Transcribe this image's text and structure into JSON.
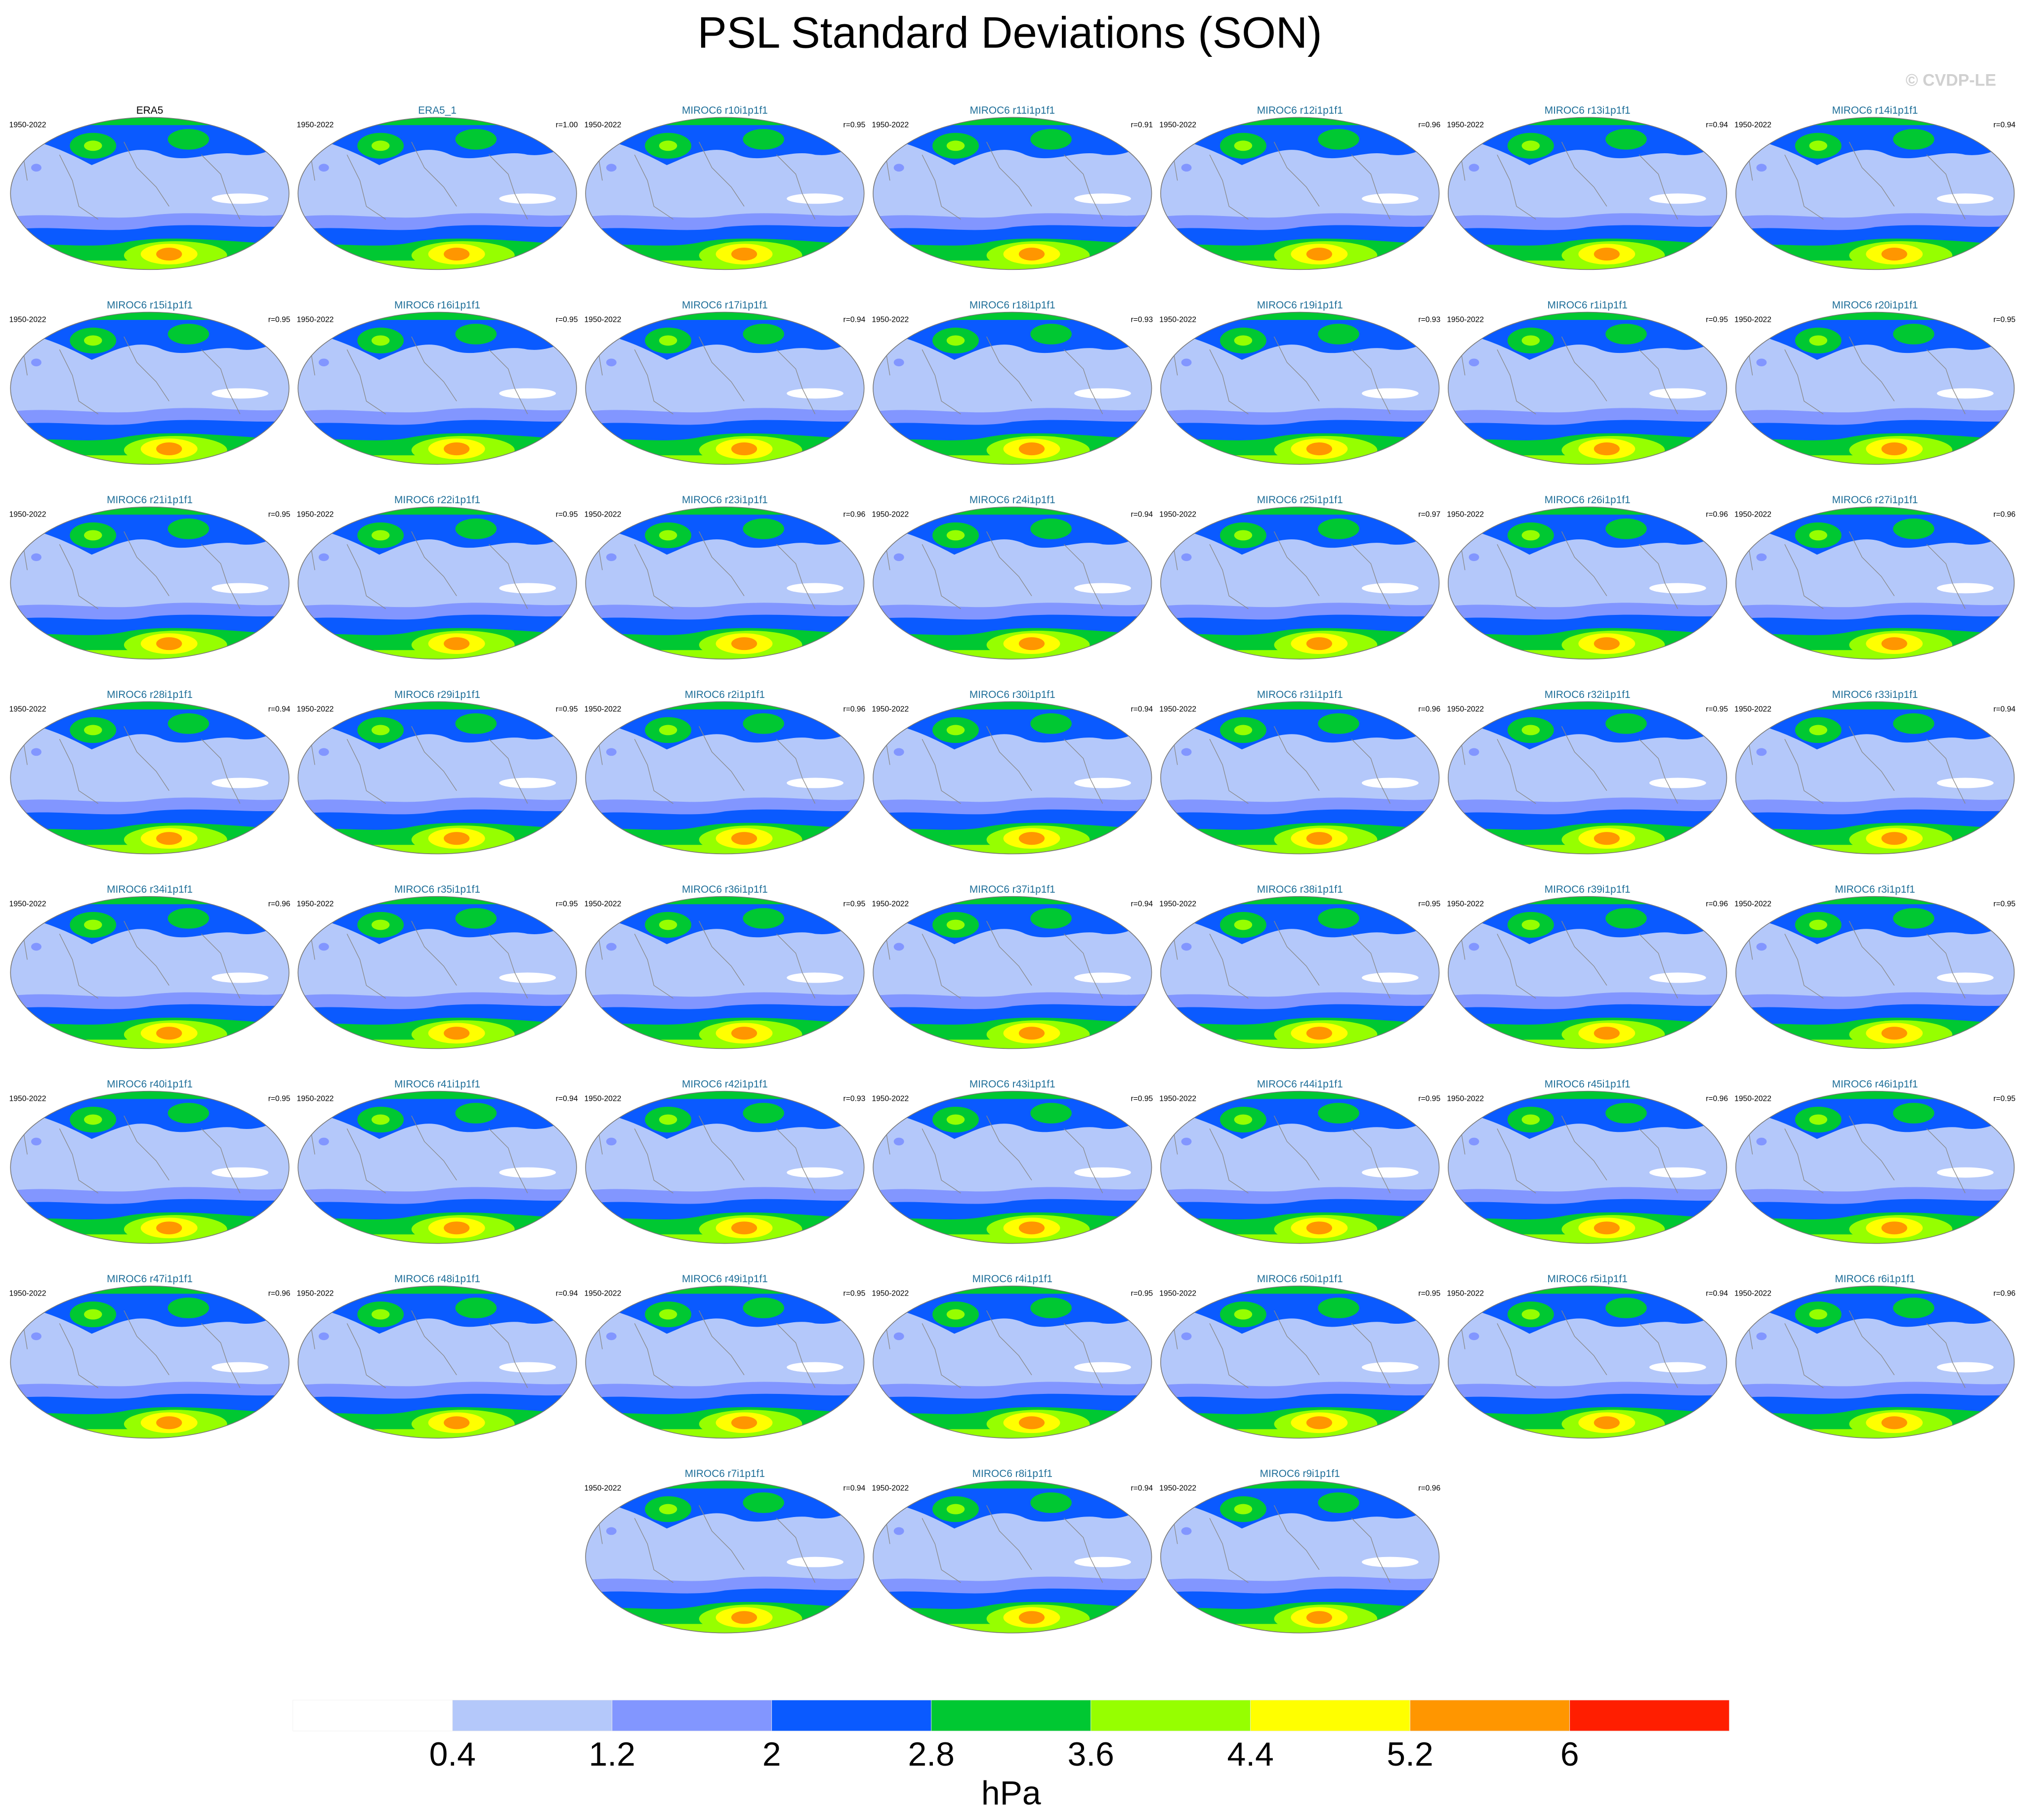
{
  "title": "PSL Standard Deviations (SON)",
  "watermark": "© CVDP-LE",
  "panels": [
    {
      "title": "ERA5",
      "period": "1950-2022"
    },
    {
      "title": "ERA5_1",
      "period": "1950-2022",
      "r": "r=1.00"
    },
    {
      "title": "MIROC6 r10i1p1f1",
      "period": "1950-2022",
      "r": "r=0.95"
    },
    {
      "title": "MIROC6 r11i1p1f1",
      "period": "1950-2022",
      "r": "r=0.91"
    },
    {
      "title": "MIROC6 r12i1p1f1",
      "period": "1950-2022",
      "r": "r=0.96"
    },
    {
      "title": "MIROC6 r13i1p1f1",
      "period": "1950-2022",
      "r": "r=0.94"
    },
    {
      "title": "MIROC6 r14i1p1f1",
      "period": "1950-2022",
      "r": "r=0.94"
    },
    {
      "title": "MIROC6 r15i1p1f1",
      "period": "1950-2022",
      "r": "r=0.95"
    },
    {
      "title": "MIROC6 r16i1p1f1",
      "period": "1950-2022",
      "r": "r=0.95"
    },
    {
      "title": "MIROC6 r17i1p1f1",
      "period": "1950-2022",
      "r": "r=0.94"
    },
    {
      "title": "MIROC6 r18i1p1f1",
      "period": "1950-2022",
      "r": "r=0.93"
    },
    {
      "title": "MIROC6 r19i1p1f1",
      "period": "1950-2022",
      "r": "r=0.93"
    },
    {
      "title": "MIROC6 r1i1p1f1",
      "period": "1950-2022",
      "r": "r=0.95"
    },
    {
      "title": "MIROC6 r20i1p1f1",
      "period": "1950-2022",
      "r": "r=0.95"
    },
    {
      "title": "MIROC6 r21i1p1f1",
      "period": "1950-2022",
      "r": "r=0.95"
    },
    {
      "title": "MIROC6 r22i1p1f1",
      "period": "1950-2022",
      "r": "r=0.95"
    },
    {
      "title": "MIROC6 r23i1p1f1",
      "period": "1950-2022",
      "r": "r=0.96"
    },
    {
      "title": "MIROC6 r24i1p1f1",
      "period": "1950-2022",
      "r": "r=0.94"
    },
    {
      "title": "MIROC6 r25i1p1f1",
      "period": "1950-2022",
      "r": "r=0.97"
    },
    {
      "title": "MIROC6 r26i1p1f1",
      "period": "1950-2022",
      "r": "r=0.96"
    },
    {
      "title": "MIROC6 r27i1p1f1",
      "period": "1950-2022",
      "r": "r=0.96"
    },
    {
      "title": "MIROC6 r28i1p1f1",
      "period": "1950-2022",
      "r": "r=0.94"
    },
    {
      "title": "MIROC6 r29i1p1f1",
      "period": "1950-2022",
      "r": "r=0.95"
    },
    {
      "title": "MIROC6 r2i1p1f1",
      "period": "1950-2022",
      "r": "r=0.96"
    },
    {
      "title": "MIROC6 r30i1p1f1",
      "period": "1950-2022",
      "r": "r=0.94"
    },
    {
      "title": "MIROC6 r31i1p1f1",
      "period": "1950-2022",
      "r": "r=0.96"
    },
    {
      "title": "MIROC6 r32i1p1f1",
      "period": "1950-2022",
      "r": "r=0.95"
    },
    {
      "title": "MIROC6 r33i1p1f1",
      "period": "1950-2022",
      "r": "r=0.94"
    },
    {
      "title": "MIROC6 r34i1p1f1",
      "period": "1950-2022",
      "r": "r=0.96"
    },
    {
      "title": "MIROC6 r35i1p1f1",
      "period": "1950-2022",
      "r": "r=0.95"
    },
    {
      "title": "MIROC6 r36i1p1f1",
      "period": "1950-2022",
      "r": "r=0.95"
    },
    {
      "title": "MIROC6 r37i1p1f1",
      "period": "1950-2022",
      "r": "r=0.94"
    },
    {
      "title": "MIROC6 r38i1p1f1",
      "period": "1950-2022",
      "r": "r=0.95"
    },
    {
      "title": "MIROC6 r39i1p1f1",
      "period": "1950-2022",
      "r": "r=0.96"
    },
    {
      "title": "MIROC6 r3i1p1f1",
      "period": "1950-2022",
      "r": "r=0.95"
    },
    {
      "title": "MIROC6 r40i1p1f1",
      "period": "1950-2022",
      "r": "r=0.95"
    },
    {
      "title": "MIROC6 r41i1p1f1",
      "period": "1950-2022",
      "r": "r=0.94"
    },
    {
      "title": "MIROC6 r42i1p1f1",
      "period": "1950-2022",
      "r": "r=0.93"
    },
    {
      "title": "MIROC6 r43i1p1f1",
      "period": "1950-2022",
      "r": "r=0.95"
    },
    {
      "title": "MIROC6 r44i1p1f1",
      "period": "1950-2022",
      "r": "r=0.95"
    },
    {
      "title": "MIROC6 r45i1p1f1",
      "period": "1950-2022",
      "r": "r=0.96"
    },
    {
      "title": "MIROC6 r46i1p1f1",
      "period": "1950-2022",
      "r": "r=0.95"
    },
    {
      "title": "MIROC6 r47i1p1f1",
      "period": "1950-2022",
      "r": "r=0.96"
    },
    {
      "title": "MIROC6 r48i1p1f1",
      "period": "1950-2022",
      "r": "r=0.94"
    },
    {
      "title": "MIROC6 r49i1p1f1",
      "period": "1950-2022",
      "r": "r=0.95"
    },
    {
      "title": "MIROC6 r4i1p1f1",
      "period": "1950-2022",
      "r": "r=0.95"
    },
    {
      "title": "MIROC6 r50i1p1f1",
      "period": "1950-2022",
      "r": "r=0.95"
    },
    {
      "title": "MIROC6 r5i1p1f1",
      "period": "1950-2022",
      "r": "r=0.94"
    },
    {
      "title": "MIROC6 r6i1p1f1",
      "period": "1950-2022",
      "r": "r=0.96"
    },
    {
      "title": "MIROC6 r7i1p1f1",
      "period": "1950-2022",
      "r": "r=0.94"
    },
    {
      "title": "MIROC6 r8i1p1f1",
      "period": "1950-2022",
      "r": "r=0.94"
    },
    {
      "title": "MIROC6 r9i1p1f1",
      "period": "1950-2022",
      "r": "r=0.96"
    }
  ],
  "colorbar": {
    "levels": [
      0.4,
      1.2,
      2,
      2.8,
      3.6,
      4.4,
      5.2,
      6
    ],
    "colors": [
      "#ffffff",
      "#b4c8fa",
      "#8296ff",
      "#0a5aff",
      "#00c832",
      "#96ff00",
      "#ffff00",
      "#ff9600",
      "#ff1e00"
    ],
    "unit": "hPa"
  }
}
